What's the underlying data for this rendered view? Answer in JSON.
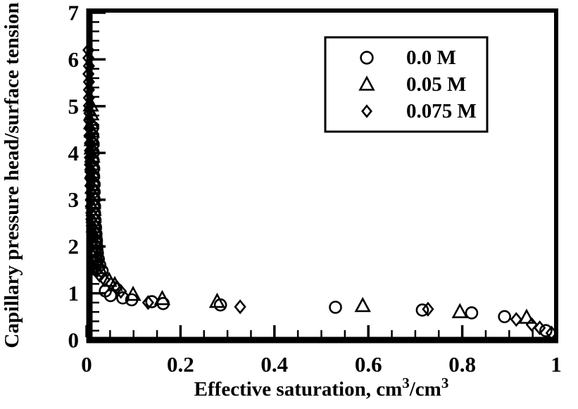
{
  "colors": {
    "foreground": "#000000",
    "background": "#ffffff"
  },
  "chart_data": {
    "type": "scatter",
    "title": "",
    "xlabel": "Effective saturation, cm3/cm3",
    "xlabel_parts": [
      {
        "t": "Effective saturation, cm",
        "sup": false
      },
      {
        "t": "3",
        "sup": true
      },
      {
        "t": "/cm",
        "sup": false
      },
      {
        "t": "3",
        "sup": true
      }
    ],
    "ylabel": "Capillary pressure head/surface tension",
    "xlim": [
      0,
      1
    ],
    "ylim": [
      0,
      7
    ],
    "x_ticks": [
      0,
      0.2,
      0.4,
      0.6,
      0.8,
      1
    ],
    "x_tick_labels": [
      "0",
      "0.2",
      "0.4",
      "0.6",
      "0.8",
      "1"
    ],
    "y_ticks": [
      0,
      1,
      2,
      3,
      4,
      5,
      6,
      7
    ],
    "y_tick_labels": [
      "0",
      "1",
      "2",
      "3",
      "4",
      "5",
      "6",
      "7"
    ],
    "x_minor_step": 0.05,
    "y_minor_step": 0.2,
    "grid": false,
    "legend_position": "top-right",
    "series": [
      {
        "name": "0.0 M",
        "marker": "circle",
        "points": [
          [
            0.013,
            4.55
          ],
          [
            0.013,
            4.37
          ],
          [
            0.014,
            4.19
          ],
          [
            0.014,
            4.01
          ],
          [
            0.014,
            3.84
          ],
          [
            0.015,
            3.67
          ],
          [
            0.015,
            3.5
          ],
          [
            0.016,
            3.33
          ],
          [
            0.016,
            3.17
          ],
          [
            0.016,
            3.01
          ],
          [
            0.017,
            2.86
          ],
          [
            0.017,
            2.71
          ],
          [
            0.018,
            2.56
          ],
          [
            0.019,
            2.41
          ],
          [
            0.02,
            2.27
          ],
          [
            0.021,
            2.13
          ],
          [
            0.022,
            1.99
          ],
          [
            0.023,
            1.86
          ],
          [
            0.025,
            1.73
          ],
          [
            0.028,
            1.6
          ],
          [
            0.033,
            1.48
          ],
          [
            0.04,
            1.05
          ],
          [
            0.051,
            0.95
          ],
          [
            0.077,
            0.9
          ],
          [
            0.096,
            0.86
          ],
          [
            0.139,
            0.82
          ],
          [
            0.163,
            0.78
          ],
          [
            0.285,
            0.75
          ],
          [
            0.53,
            0.7
          ],
          [
            0.715,
            0.64
          ],
          [
            0.82,
            0.58
          ],
          [
            0.89,
            0.5
          ],
          [
            0.978,
            0.2
          ]
        ]
      },
      {
        "name": "0.05 M",
        "marker": "triangle",
        "points": [
          [
            0.009,
            5.02
          ],
          [
            0.01,
            4.83
          ],
          [
            0.01,
            4.64
          ],
          [
            0.011,
            4.46
          ],
          [
            0.011,
            4.28
          ],
          [
            0.011,
            4.1
          ],
          [
            0.012,
            3.93
          ],
          [
            0.012,
            3.76
          ],
          [
            0.012,
            3.59
          ],
          [
            0.013,
            3.42
          ],
          [
            0.013,
            3.26
          ],
          [
            0.014,
            3.1
          ],
          [
            0.014,
            2.94
          ],
          [
            0.015,
            2.79
          ],
          [
            0.015,
            2.64
          ],
          [
            0.016,
            2.49
          ],
          [
            0.017,
            2.34
          ],
          [
            0.018,
            2.2
          ],
          [
            0.019,
            2.06
          ],
          [
            0.02,
            1.92
          ],
          [
            0.022,
            1.79
          ],
          [
            0.024,
            1.66
          ],
          [
            0.027,
            1.54
          ],
          [
            0.048,
            1.27
          ],
          [
            0.06,
            1.18
          ],
          [
            0.099,
            0.97
          ],
          [
            0.161,
            0.88
          ],
          [
            0.278,
            0.82
          ],
          [
            0.588,
            0.73
          ],
          [
            0.795,
            0.6
          ],
          [
            0.937,
            0.48
          ]
        ]
      },
      {
        "name": "0.075 M",
        "marker": "diamond",
        "points": [
          [
            0.004,
            6.2
          ],
          [
            0.004,
            6.03
          ],
          [
            0.005,
            5.86
          ],
          [
            0.004,
            5.69
          ],
          [
            0.005,
            5.52
          ],
          [
            0.005,
            5.35
          ],
          [
            0.005,
            5.18
          ],
          [
            0.005,
            5.01
          ],
          [
            0.006,
            4.85
          ],
          [
            0.006,
            4.69
          ],
          [
            0.006,
            4.53
          ],
          [
            0.006,
            4.37
          ],
          [
            0.007,
            4.21
          ],
          [
            0.007,
            4.05
          ],
          [
            0.007,
            3.9
          ],
          [
            0.007,
            3.75
          ],
          [
            0.008,
            3.6
          ],
          [
            0.008,
            3.45
          ],
          [
            0.008,
            3.3
          ],
          [
            0.009,
            3.15
          ],
          [
            0.009,
            3.0
          ],
          [
            0.009,
            2.86
          ],
          [
            0.01,
            2.72
          ],
          [
            0.01,
            2.58
          ],
          [
            0.011,
            2.44
          ],
          [
            0.011,
            2.31
          ],
          [
            0.012,
            2.18
          ],
          [
            0.012,
            2.05
          ],
          [
            0.013,
            1.92
          ],
          [
            0.014,
            1.8
          ],
          [
            0.016,
            1.68
          ],
          [
            0.018,
            1.57
          ],
          [
            0.022,
            1.48
          ],
          [
            0.028,
            1.38
          ],
          [
            0.038,
            1.29
          ],
          [
            0.052,
            1.2
          ],
          [
            0.065,
            1.12
          ],
          [
            0.073,
            1.04
          ],
          [
            0.131,
            0.8
          ],
          [
            0.327,
            0.71
          ],
          [
            0.727,
            0.66
          ],
          [
            0.915,
            0.44
          ],
          [
            0.948,
            0.33
          ],
          [
            0.965,
            0.26
          ],
          [
            0.99,
            0.15
          ]
        ]
      }
    ]
  }
}
